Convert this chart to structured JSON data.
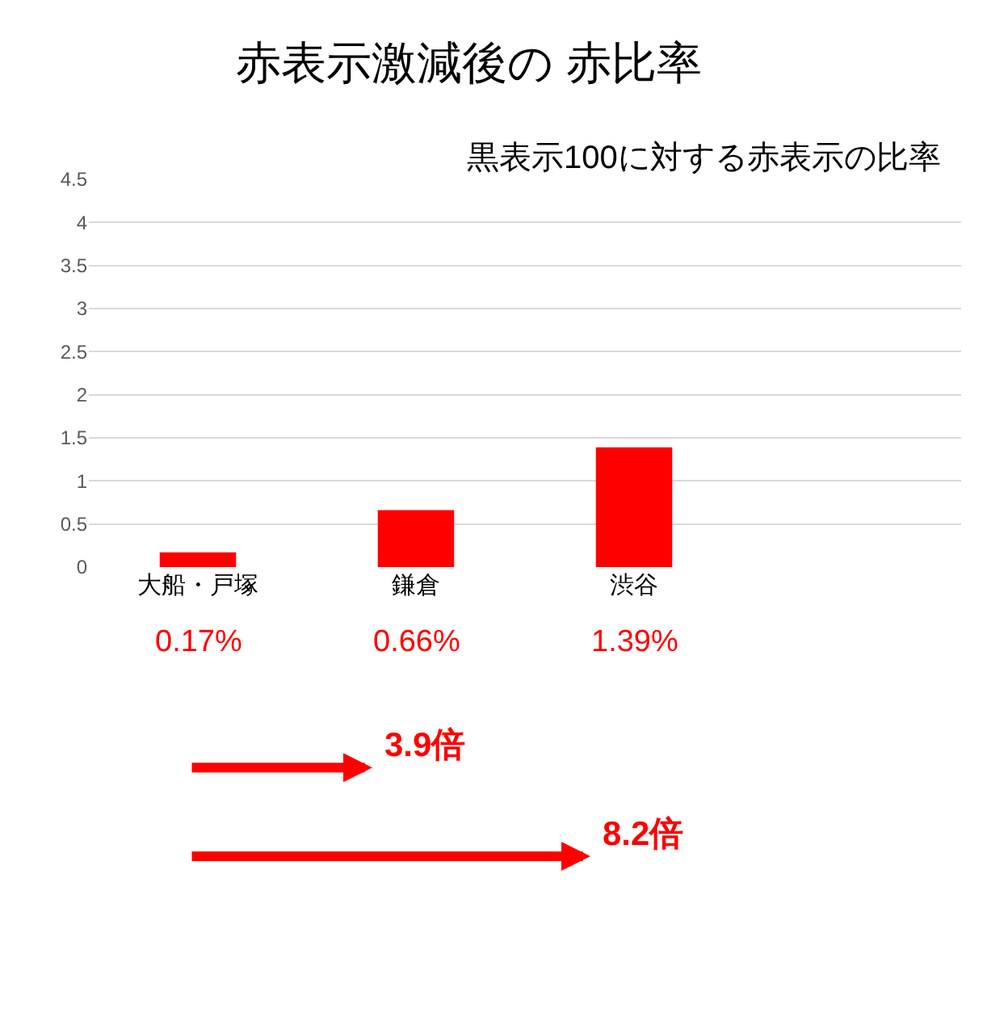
{
  "chart_data": {
    "type": "bar",
    "title": "赤表示激減後の 赤比率",
    "subtitle": "黒表示100に対する赤表示の比率",
    "categories": [
      "大船・戸塚",
      "鎌倉",
      "渋谷",
      null
    ],
    "values": [
      0.17,
      0.66,
      1.39,
      null
    ],
    "value_labels": [
      "0.17%",
      "0.66%",
      "1.39%",
      null
    ],
    "color": "#ff0000",
    "ylim": [
      0,
      4.5
    ],
    "yticks": [
      0,
      0.5,
      1,
      1.5,
      2,
      2.5,
      3,
      3.5,
      4,
      4.5
    ],
    "grid": "y",
    "annotations": [
      "3.9倍",
      "8.2倍"
    ]
  }
}
